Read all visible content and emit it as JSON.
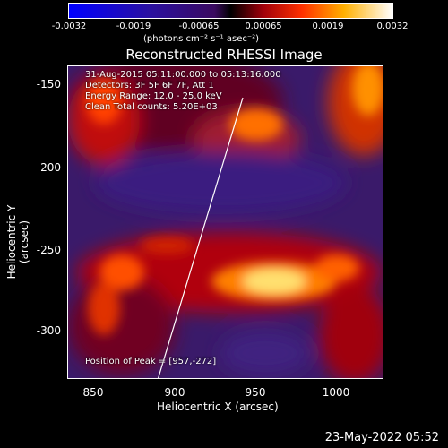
{
  "colorbar": {
    "tick_labels": [
      "-0.0032",
      "-0.0019",
      "-0.00065",
      "0.00065",
      "0.0019",
      "0.0032"
    ],
    "unit": "(photons cm⁻² s⁻¹ asec⁻²)"
  },
  "plot": {
    "title": "Reconstructed RHESSI Image",
    "xlabel": "Heliocentric X (arcsec)",
    "ylabel": "Heliocentric Y (arcsec)",
    "xticks": [
      "850",
      "900",
      "950",
      "1000"
    ],
    "yticks": [
      "-150",
      "-200",
      "-250",
      "-300"
    ],
    "info_lines": [
      "31-Aug-2015 05:11:00.000 to 05:13:16.000",
      "Detectors: 3F 5F 6F 7F, Att 1",
      "Energy Range: 12.0 - 25.0 keV",
      "Clean    Total counts: 5.20E+03"
    ],
    "peak_label": "Position of Peak = [957,-272]"
  },
  "footer": {
    "timestamp": "23-May-2022 05:52"
  }
}
